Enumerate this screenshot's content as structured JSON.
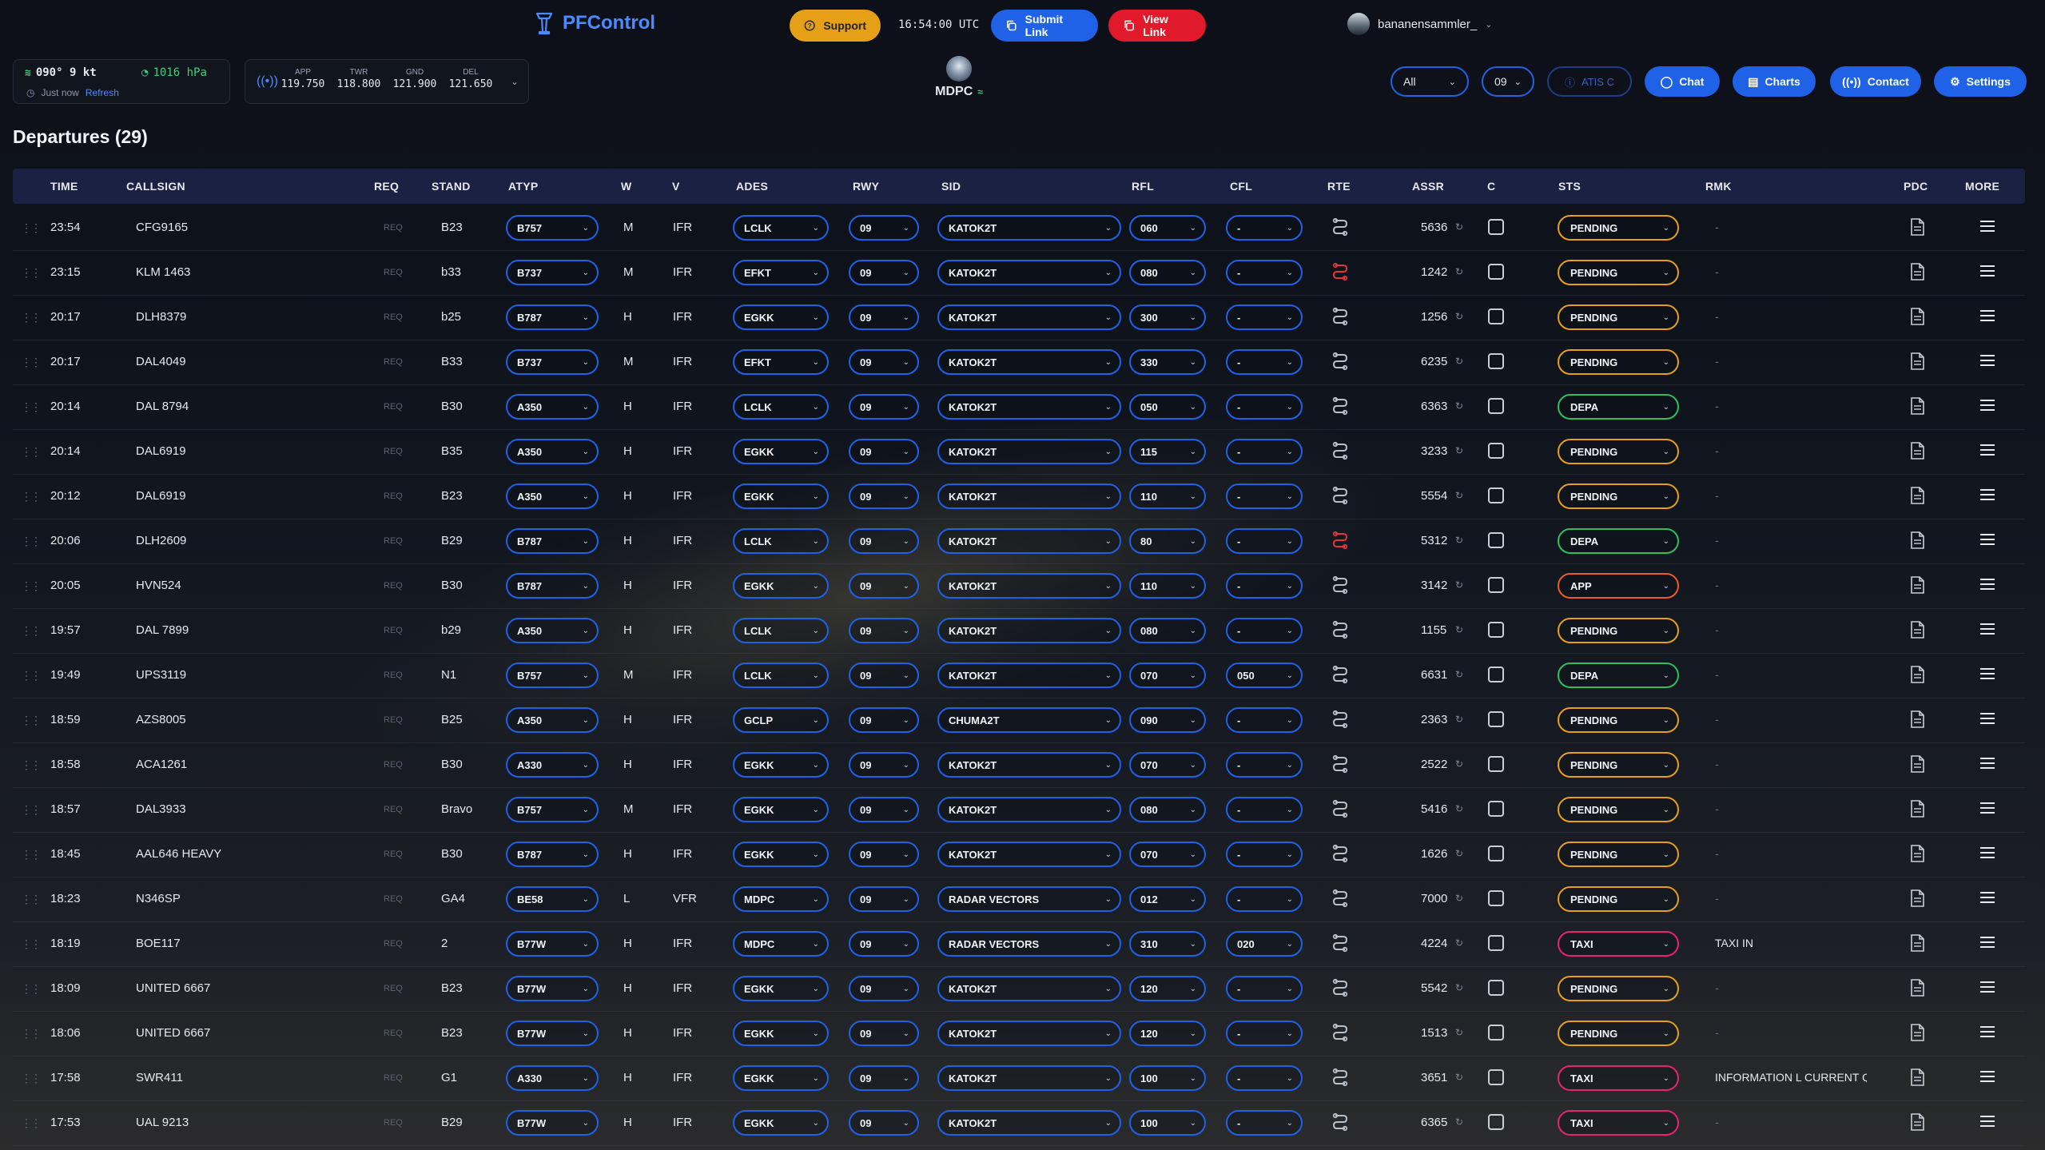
{
  "header": {
    "app_name": "PFControl",
    "support_label": "Support",
    "utc_time": "16:54:00 UTC",
    "submit_link_label": "Submit Link",
    "view_link_label": "View Link",
    "username": "bananensammler_",
    "brand_color": "#4a8cff",
    "support_color": "#e6a018",
    "submit_color": "#1f62e8",
    "view_color": "#e01a2a"
  },
  "weather": {
    "wind": "090° 9 kt",
    "pressure": "1016 hPa",
    "updated": "Just now",
    "refresh_label": "Refresh"
  },
  "frequencies": [
    {
      "label": "APP",
      "value": "119.750"
    },
    {
      "label": "TWR",
      "value": "118.800"
    },
    {
      "label": "GND",
      "value": "121.900"
    },
    {
      "label": "DEL",
      "value": "121.650"
    }
  ],
  "airport": {
    "code": "MDPC"
  },
  "toolbar": {
    "filter": "All",
    "runway": "09",
    "atis": "ATIS C",
    "chat": "Chat",
    "charts": "Charts",
    "contact": "Contact",
    "settings": "Settings"
  },
  "section": {
    "title": "Departures (29)"
  },
  "columns": [
    "TIME",
    "CALLSIGN",
    "REQ",
    "STAND",
    "ATYP",
    "W",
    "V",
    "ADES",
    "RWY",
    "SID",
    "RFL",
    "CFL",
    "RTE",
    "ASSR",
    "C",
    "STS",
    "RMK",
    "PDC",
    "MORE"
  ],
  "req_label": "REQ",
  "status_colors": {
    "PENDING": "#e6a018",
    "DEPA": "#2fbf5a",
    "APP": "#f05a24",
    "TAXI": "#e8246e"
  },
  "rte_colors": {
    "normal": "#b8c0cc",
    "alert": "#e0343e"
  },
  "rows": [
    {
      "time": "23:54",
      "callsign": "CFG9165",
      "stand": "B23",
      "atyp": "B757",
      "w": "M",
      "v": "IFR",
      "ades": "LCLK",
      "rwy": "09",
      "sid": "KATOK2T",
      "rfl": "060",
      "cfl": "-",
      "rte": "normal",
      "assr": "5636",
      "sts": "PENDING",
      "rmk": "-"
    },
    {
      "time": "23:15",
      "callsign": "KLM 1463",
      "stand": "b33",
      "atyp": "B737",
      "w": "M",
      "v": "IFR",
      "ades": "EFKT",
      "rwy": "09",
      "sid": "KATOK2T",
      "rfl": "080",
      "cfl": "-",
      "rte": "alert",
      "assr": "1242",
      "sts": "PENDING",
      "rmk": "-"
    },
    {
      "time": "20:17",
      "callsign": "DLH8379",
      "stand": "b25",
      "atyp": "B787",
      "w": "H",
      "v": "IFR",
      "ades": "EGKK",
      "rwy": "09",
      "sid": "KATOK2T",
      "rfl": "300",
      "cfl": "-",
      "rte": "normal",
      "assr": "1256",
      "sts": "PENDING",
      "rmk": "-"
    },
    {
      "time": "20:17",
      "callsign": "DAL4049",
      "stand": "B33",
      "atyp": "B737",
      "w": "M",
      "v": "IFR",
      "ades": "EFKT",
      "rwy": "09",
      "sid": "KATOK2T",
      "rfl": "330",
      "cfl": "-",
      "rte": "normal",
      "assr": "6235",
      "sts": "PENDING",
      "rmk": "-"
    },
    {
      "time": "20:14",
      "callsign": "DAL 8794",
      "stand": "B30",
      "atyp": "A350",
      "w": "H",
      "v": "IFR",
      "ades": "LCLK",
      "rwy": "09",
      "sid": "KATOK2T",
      "rfl": "050",
      "cfl": "-",
      "rte": "normal",
      "assr": "6363",
      "sts": "DEPA",
      "rmk": "-"
    },
    {
      "time": "20:14",
      "callsign": "DAL6919",
      "stand": "B35",
      "atyp": "A350",
      "w": "H",
      "v": "IFR",
      "ades": "EGKK",
      "rwy": "09",
      "sid": "KATOK2T",
      "rfl": "115",
      "cfl": "-",
      "rte": "normal",
      "assr": "3233",
      "sts": "PENDING",
      "rmk": "-"
    },
    {
      "time": "20:12",
      "callsign": "DAL6919",
      "stand": "B23",
      "atyp": "A350",
      "w": "H",
      "v": "IFR",
      "ades": "EGKK",
      "rwy": "09",
      "sid": "KATOK2T",
      "rfl": "110",
      "cfl": "-",
      "rte": "normal",
      "assr": "5554",
      "sts": "PENDING",
      "rmk": "-"
    },
    {
      "time": "20:06",
      "callsign": "DLH2609",
      "stand": "B29",
      "atyp": "B787",
      "w": "H",
      "v": "IFR",
      "ades": "LCLK",
      "rwy": "09",
      "sid": "KATOK2T",
      "rfl": "80",
      "cfl": "-",
      "rte": "alert",
      "assr": "5312",
      "sts": "DEPA",
      "rmk": "-"
    },
    {
      "time": "20:05",
      "callsign": "HVN524",
      "stand": "B30",
      "atyp": "B787",
      "w": "H",
      "v": "IFR",
      "ades": "EGKK",
      "rwy": "09",
      "sid": "KATOK2T",
      "rfl": "110",
      "cfl": "-",
      "rte": "normal",
      "assr": "3142",
      "sts": "APP",
      "rmk": "-"
    },
    {
      "time": "19:57",
      "callsign": "DAL 7899",
      "stand": "b29",
      "atyp": "A350",
      "w": "H",
      "v": "IFR",
      "ades": "LCLK",
      "rwy": "09",
      "sid": "KATOK2T",
      "rfl": "080",
      "cfl": "-",
      "rte": "normal",
      "assr": "1155",
      "sts": "PENDING",
      "rmk": "-"
    },
    {
      "time": "19:49",
      "callsign": "UPS3119",
      "stand": "N1",
      "atyp": "B757",
      "w": "M",
      "v": "IFR",
      "ades": "LCLK",
      "rwy": "09",
      "sid": "KATOK2T",
      "rfl": "070",
      "cfl": "050",
      "rte": "normal",
      "assr": "6631",
      "sts": "DEPA",
      "rmk": "-"
    },
    {
      "time": "18:59",
      "callsign": "AZS8005",
      "stand": "B25",
      "atyp": "A350",
      "w": "H",
      "v": "IFR",
      "ades": "GCLP",
      "rwy": "09",
      "sid": "CHUMA2T",
      "rfl": "090",
      "cfl": "-",
      "rte": "normal",
      "assr": "2363",
      "sts": "PENDING",
      "rmk": "-"
    },
    {
      "time": "18:58",
      "callsign": "ACA1261",
      "stand": "B30",
      "atyp": "A330",
      "w": "H",
      "v": "IFR",
      "ades": "EGKK",
      "rwy": "09",
      "sid": "KATOK2T",
      "rfl": "070",
      "cfl": "-",
      "rte": "normal",
      "assr": "2522",
      "sts": "PENDING",
      "rmk": "-"
    },
    {
      "time": "18:57",
      "callsign": "DAL3933",
      "stand": "Bravo",
      "atyp": "B757",
      "w": "M",
      "v": "IFR",
      "ades": "EGKK",
      "rwy": "09",
      "sid": "KATOK2T",
      "rfl": "080",
      "cfl": "-",
      "rte": "normal",
      "assr": "5416",
      "sts": "PENDING",
      "rmk": "-"
    },
    {
      "time": "18:45",
      "callsign": "AAL646 HEAVY",
      "stand": "B30",
      "atyp": "B787",
      "w": "H",
      "v": "IFR",
      "ades": "EGKK",
      "rwy": "09",
      "sid": "KATOK2T",
      "rfl": "070",
      "cfl": "-",
      "rte": "normal",
      "assr": "1626",
      "sts": "PENDING",
      "rmk": "-"
    },
    {
      "time": "18:23",
      "callsign": "N346SP",
      "stand": "GA4",
      "atyp": "BE58",
      "w": "L",
      "v": "VFR",
      "ades": "MDPC",
      "rwy": "09",
      "sid": "RADAR VECTORS",
      "rfl": "012",
      "cfl": "-",
      "rte": "normal",
      "assr": "7000",
      "sts": "PENDING",
      "rmk": "-"
    },
    {
      "time": "18:19",
      "callsign": "BOE117",
      "stand": "2",
      "atyp": "B77W",
      "w": "H",
      "v": "IFR",
      "ades": "MDPC",
      "rwy": "09",
      "sid": "RADAR VECTORS",
      "rfl": "310",
      "cfl": "020",
      "rte": "normal",
      "assr": "4224",
      "sts": "TAXI",
      "rmk": "TAXI IN"
    },
    {
      "time": "18:09",
      "callsign": "UNITED 6667",
      "stand": "B23",
      "atyp": "B77W",
      "w": "H",
      "v": "IFR",
      "ades": "EGKK",
      "rwy": "09",
      "sid": "KATOK2T",
      "rfl": "120",
      "cfl": "-",
      "rte": "normal",
      "assr": "5542",
      "sts": "PENDING",
      "rmk": "-"
    },
    {
      "time": "18:06",
      "callsign": "UNITED 6667",
      "stand": "B23",
      "atyp": "B77W",
      "w": "H",
      "v": "IFR",
      "ades": "EGKK",
      "rwy": "09",
      "sid": "KATOK2T",
      "rfl": "120",
      "cfl": "-",
      "rte": "normal",
      "assr": "1513",
      "sts": "PENDING",
      "rmk": "-"
    },
    {
      "time": "17:58",
      "callsign": "SWR411",
      "stand": "G1",
      "atyp": "A330",
      "w": "H",
      "v": "IFR",
      "ades": "EGKK",
      "rwy": "09",
      "sid": "KATOK2T",
      "rfl": "100",
      "cfl": "-",
      "rte": "normal",
      "assr": "3651",
      "sts": "TAXI",
      "rmk": "INFORMATION L CURRENT QNH"
    },
    {
      "time": "17:53",
      "callsign": "UAL 9213",
      "stand": "B29",
      "atyp": "B77W",
      "w": "H",
      "v": "IFR",
      "ades": "EGKK",
      "rwy": "09",
      "sid": "KATOK2T",
      "rfl": "100",
      "cfl": "-",
      "rte": "normal",
      "assr": "6365",
      "sts": "TAXI",
      "rmk": "-"
    }
  ]
}
